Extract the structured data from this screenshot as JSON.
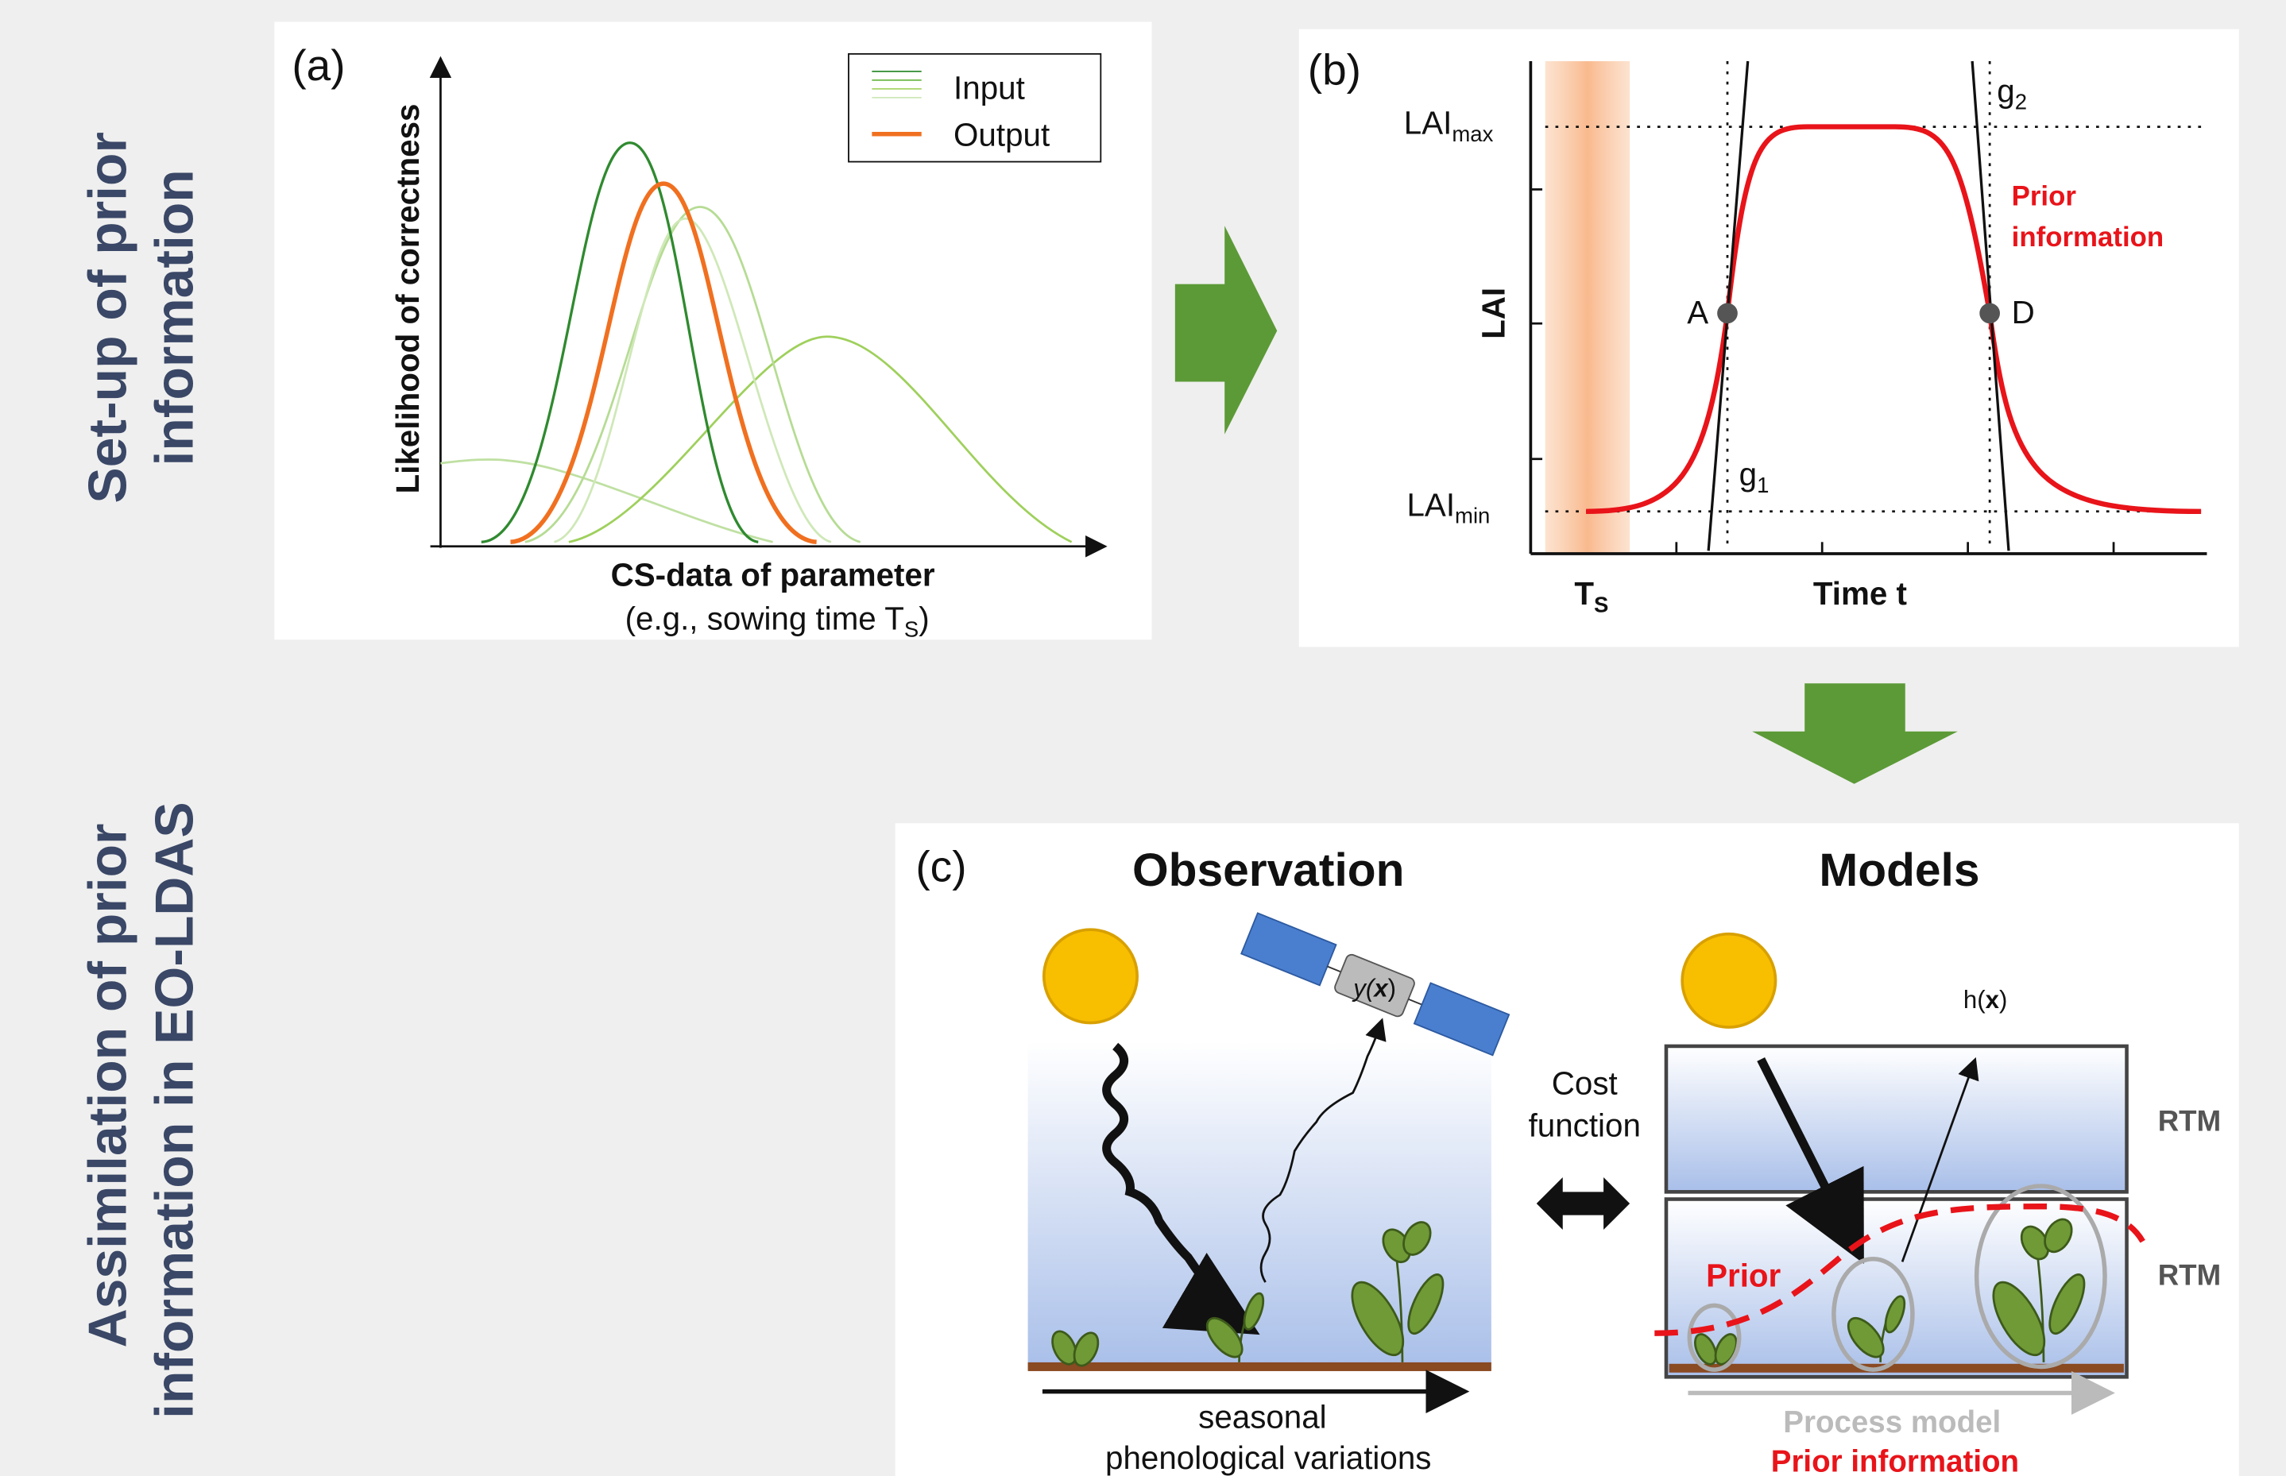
{
  "side_labels": {
    "top": [
      "Set-up of prior",
      "information"
    ],
    "bottom": [
      "Assimilation of prior",
      "information in EO-LDAS"
    ]
  },
  "panel_a": {
    "label": "(a)",
    "y_axis": "Likelihood of correctness",
    "x_axis": "CS-data of parameter",
    "x_note": {
      "before": "(e.g., sowing time T",
      "sub": "S",
      "after": ")"
    },
    "legend": [
      "Input",
      "Output"
    ]
  },
  "panel_b": {
    "label": "(b)",
    "y_axis": "LAI",
    "lai_max": {
      "main": "LAI",
      "sub": "max"
    },
    "lai_min": {
      "main": "LAI",
      "sub": "min"
    },
    "g2": {
      "main": "g",
      "sub": "2"
    },
    "g1": {
      "main": "g",
      "sub": "1"
    },
    "point_a": "A",
    "point_d": "D",
    "prior": [
      "Prior",
      "information"
    ],
    "ts": {
      "main": "T",
      "sub": "S"
    },
    "x_axis": "Time t"
  },
  "panel_c": {
    "label": "(c)",
    "observation": "Observation",
    "models": "Models",
    "yx": {
      "before": "y(",
      "x": "x",
      "after": ")"
    },
    "hx": {
      "before": "h(",
      "x": "x",
      "after": ")"
    },
    "cost": [
      "Cost",
      "function"
    ],
    "rtm_top": "RTM",
    "rtm_bottom": "RTM",
    "prior": "Prior",
    "seasonal": [
      "seasonal",
      "phenological variations"
    ],
    "process_model": "Process model",
    "prior_information": "Prior information"
  }
}
